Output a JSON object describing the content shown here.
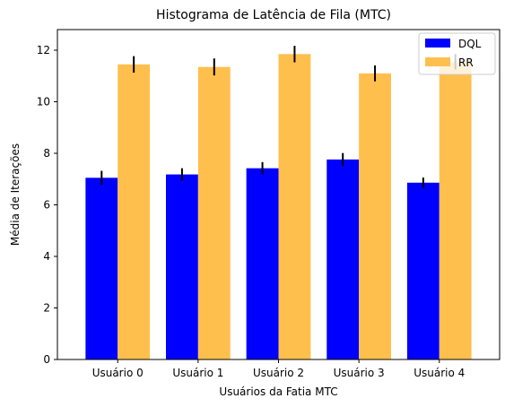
{
  "chart_data": {
    "type": "bar",
    "title": "Histograma de Latência de Fila (MTC)",
    "xlabel": "Usuários da Fatia MTC",
    "ylabel": "Média de Iterações",
    "categories": [
      "Usuário 0",
      "Usuário 1",
      "Usuário 2",
      "Usuário 3",
      "Usuário 4"
    ],
    "series": [
      {
        "name": "DQL",
        "color": "#0000ff",
        "values": [
          7.05,
          7.18,
          7.42,
          7.76,
          6.86
        ],
        "errors": [
          0.27,
          0.24,
          0.24,
          0.25,
          0.2
        ]
      },
      {
        "name": "RR",
        "color": "#ffbf4d",
        "values": [
          11.45,
          11.35,
          11.85,
          11.1,
          11.55
        ],
        "errors": [
          0.32,
          0.33,
          0.32,
          0.31,
          0.3
        ]
      }
    ],
    "ylim": [
      0,
      12.8
    ],
    "yticks": [
      0,
      2,
      4,
      6,
      8,
      10,
      12
    ],
    "grid": false,
    "legend_position": "top-right"
  }
}
